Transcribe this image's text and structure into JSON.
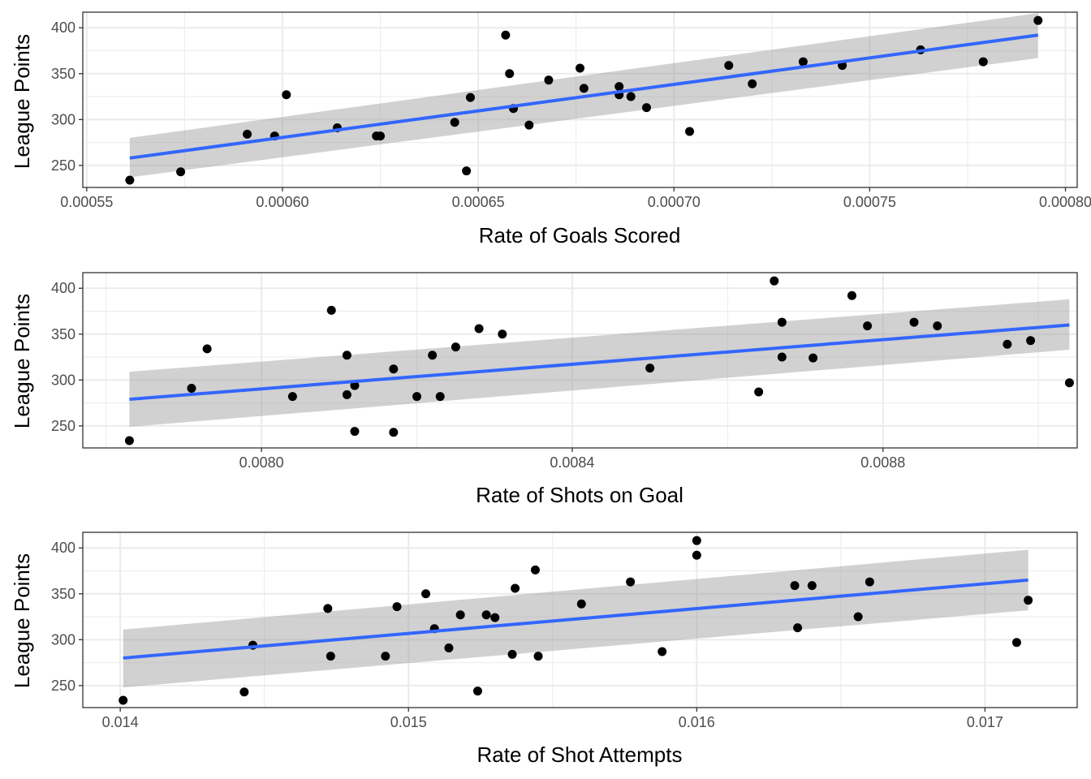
{
  "style": {
    "point_color": "#000000",
    "line_color": "#3366FF",
    "band_color": "#999999",
    "grid_color": "#EBEBEB",
    "panel_border": "#333333",
    "tick_label_color": "#4D4D4D"
  },
  "chart_data": [
    {
      "type": "scatter",
      "title": "",
      "xlabel": "Rate of Goals Scored",
      "ylabel": "League Points",
      "xlim": [
        0.000549,
        0.000803
      ],
      "ylim": [
        226,
        417
      ],
      "xticks": [
        0.00055,
        0.0006,
        0.00065,
        0.0007,
        0.00075,
        0.0008
      ],
      "xtick_labels": [
        "0.00055",
        "0.00060",
        "0.00065",
        "0.00070",
        "0.00075",
        "0.00080"
      ],
      "yticks": [
        250,
        300,
        350,
        400
      ],
      "ytick_labels": [
        "250",
        "300",
        "350",
        "400"
      ],
      "grid": true,
      "points": [
        {
          "x": 0.000561,
          "y": 234
        },
        {
          "x": 0.000574,
          "y": 243
        },
        {
          "x": 0.000591,
          "y": 284
        },
        {
          "x": 0.000598,
          "y": 282
        },
        {
          "x": 0.000601,
          "y": 327
        },
        {
          "x": 0.000614,
          "y": 291
        },
        {
          "x": 0.000624,
          "y": 282
        },
        {
          "x": 0.000625,
          "y": 282
        },
        {
          "x": 0.000644,
          "y": 297
        },
        {
          "x": 0.000647,
          "y": 244
        },
        {
          "x": 0.000648,
          "y": 324
        },
        {
          "x": 0.000657,
          "y": 392
        },
        {
          "x": 0.000658,
          "y": 350
        },
        {
          "x": 0.000659,
          "y": 312
        },
        {
          "x": 0.000663,
          "y": 294
        },
        {
          "x": 0.000668,
          "y": 343
        },
        {
          "x": 0.000676,
          "y": 356
        },
        {
          "x": 0.000677,
          "y": 334
        },
        {
          "x": 0.000686,
          "y": 336
        },
        {
          "x": 0.000686,
          "y": 327
        },
        {
          "x": 0.000689,
          "y": 325
        },
        {
          "x": 0.000693,
          "y": 313
        },
        {
          "x": 0.000704,
          "y": 287
        },
        {
          "x": 0.000714,
          "y": 359
        },
        {
          "x": 0.00072,
          "y": 339
        },
        {
          "x": 0.000733,
          "y": 363
        },
        {
          "x": 0.000743,
          "y": 359
        },
        {
          "x": 0.000763,
          "y": 376
        },
        {
          "x": 0.000779,
          "y": 363
        },
        {
          "x": 0.000793,
          "y": 408
        }
      ],
      "fit": {
        "x": [
          0.000561,
          0.000793
        ],
        "y": [
          258,
          392
        ],
        "lower": [
          237,
          367
        ],
        "upper": [
          280,
          416
        ]
      }
    },
    {
      "type": "scatter",
      "title": "",
      "xlabel": "Rate of Shots on Goal",
      "ylabel": "League Points",
      "xlim": [
        0.00777,
        0.00905
      ],
      "ylim": [
        226,
        417
      ],
      "xticks": [
        0.008,
        0.0084,
        0.0088
      ],
      "xtick_labels": [
        "0.0080",
        "0.0084",
        "0.0088"
      ],
      "yticks": [
        250,
        300,
        350,
        400
      ],
      "ytick_labels": [
        "250",
        "300",
        "350",
        "400"
      ],
      "grid": true,
      "points": [
        {
          "x": 0.00783,
          "y": 234
        },
        {
          "x": 0.00791,
          "y": 291
        },
        {
          "x": 0.00793,
          "y": 334
        },
        {
          "x": 0.00804,
          "y": 282
        },
        {
          "x": 0.00809,
          "y": 376
        },
        {
          "x": 0.00811,
          "y": 327
        },
        {
          "x": 0.00811,
          "y": 284
        },
        {
          "x": 0.00812,
          "y": 294
        },
        {
          "x": 0.00812,
          "y": 244
        },
        {
          "x": 0.00817,
          "y": 312
        },
        {
          "x": 0.00817,
          "y": 243
        },
        {
          "x": 0.0082,
          "y": 282
        },
        {
          "x": 0.00822,
          "y": 327
        },
        {
          "x": 0.00823,
          "y": 282
        },
        {
          "x": 0.00825,
          "y": 336
        },
        {
          "x": 0.00828,
          "y": 356
        },
        {
          "x": 0.00831,
          "y": 350
        },
        {
          "x": 0.0085,
          "y": 313
        },
        {
          "x": 0.00864,
          "y": 287
        },
        {
          "x": 0.00866,
          "y": 408
        },
        {
          "x": 0.00867,
          "y": 363
        },
        {
          "x": 0.00867,
          "y": 325
        },
        {
          "x": 0.00871,
          "y": 324
        },
        {
          "x": 0.00876,
          "y": 392
        },
        {
          "x": 0.00878,
          "y": 359
        },
        {
          "x": 0.00884,
          "y": 363
        },
        {
          "x": 0.00887,
          "y": 359
        },
        {
          "x": 0.00896,
          "y": 339
        },
        {
          "x": 0.00899,
          "y": 343
        },
        {
          "x": 0.00904,
          "y": 297
        }
      ],
      "fit": {
        "x": [
          0.00783,
          0.00904
        ],
        "y": [
          279,
          360
        ],
        "lower": [
          249,
          333
        ],
        "upper": [
          309,
          388
        ]
      }
    },
    {
      "type": "scatter",
      "title": "",
      "xlabel": "Rate of Shot Attempts",
      "ylabel": "League Points",
      "xlim": [
        0.01387,
        0.01732
      ],
      "ylim": [
        226,
        417
      ],
      "xticks": [
        0.014,
        0.015,
        0.016,
        0.017
      ],
      "xtick_labels": [
        "0.014",
        "0.015",
        "0.016",
        "0.017"
      ],
      "yticks": [
        250,
        300,
        350,
        400
      ],
      "ytick_labels": [
        "250",
        "300",
        "350",
        "400"
      ],
      "grid": true,
      "points": [
        {
          "x": 0.01401,
          "y": 234
        },
        {
          "x": 0.01443,
          "y": 243
        },
        {
          "x": 0.01446,
          "y": 294
        },
        {
          "x": 0.01472,
          "y": 334
        },
        {
          "x": 0.01473,
          "y": 282
        },
        {
          "x": 0.01492,
          "y": 282
        },
        {
          "x": 0.01496,
          "y": 336
        },
        {
          "x": 0.01506,
          "y": 350
        },
        {
          "x": 0.01509,
          "y": 312
        },
        {
          "x": 0.01514,
          "y": 291
        },
        {
          "x": 0.01518,
          "y": 327
        },
        {
          "x": 0.01524,
          "y": 244
        },
        {
          "x": 0.01527,
          "y": 327
        },
        {
          "x": 0.0153,
          "y": 324
        },
        {
          "x": 0.01536,
          "y": 284
        },
        {
          "x": 0.01537,
          "y": 356
        },
        {
          "x": 0.01544,
          "y": 376
        },
        {
          "x": 0.01545,
          "y": 282
        },
        {
          "x": 0.0156,
          "y": 339
        },
        {
          "x": 0.01577,
          "y": 363
        },
        {
          "x": 0.01588,
          "y": 287
        },
        {
          "x": 0.016,
          "y": 408
        },
        {
          "x": 0.016,
          "y": 392
        },
        {
          "x": 0.01634,
          "y": 359
        },
        {
          "x": 0.01635,
          "y": 313
        },
        {
          "x": 0.0164,
          "y": 359
        },
        {
          "x": 0.01656,
          "y": 325
        },
        {
          "x": 0.0166,
          "y": 363
        },
        {
          "x": 0.01711,
          "y": 297
        },
        {
          "x": 0.01715,
          "y": 343
        }
      ],
      "fit": {
        "x": [
          0.01401,
          0.01715
        ],
        "y": [
          280,
          365
        ],
        "lower": [
          248,
          332
        ],
        "upper": [
          311,
          398
        ]
      }
    }
  ]
}
